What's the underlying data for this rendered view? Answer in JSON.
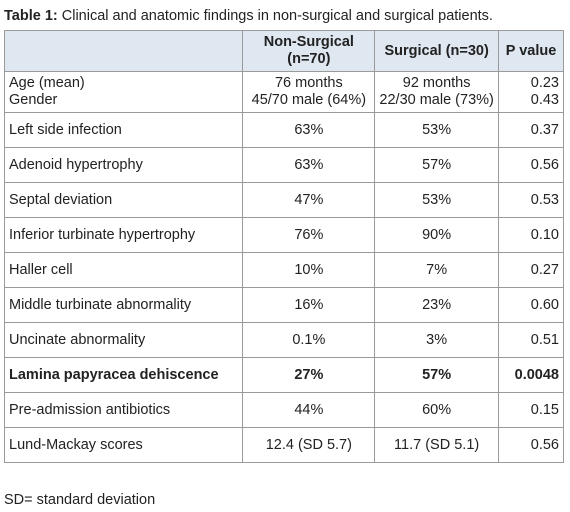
{
  "title": {
    "label": "Table 1:",
    "text": "Clinical and anatomic findings in non-surgical and surgical patients."
  },
  "table": {
    "header": [
      "Non-Surgical (n=70)",
      "Surgical (n=30)",
      "P value"
    ],
    "rows": [
      {
        "cells": [
          [
            "Age (mean)",
            "Gender"
          ],
          [
            "76 months",
            "45/70 male (64%)"
          ],
          [
            "92 months",
            "22/30 male (73%)"
          ],
          [
            "0.23",
            "0.43"
          ]
        ]
      },
      {
        "cells": [
          "Left side infection",
          "63%",
          "53%",
          "0.37"
        ]
      },
      {
        "cells": [
          "Adenoid hypertrophy",
          "63%",
          "57%",
          "0.56"
        ]
      },
      {
        "cells": [
          "Septal deviation",
          "47%",
          "53%",
          "0.53"
        ]
      },
      {
        "cells": [
          "Inferior turbinate hypertrophy",
          "76%",
          "90%",
          "0.10"
        ]
      },
      {
        "cells": [
          "Haller cell",
          "10%",
          "7%",
          "0.27"
        ]
      },
      {
        "cells": [
          "Middle turbinate abnormality",
          "16%",
          "23%",
          "0.60"
        ]
      },
      {
        "cells": [
          "Uncinate abnormality",
          "0.1%",
          "3%",
          "0.51"
        ]
      },
      {
        "cells": [
          "Lamina papyracea dehiscence",
          "27%",
          "57%",
          "0.0048"
        ],
        "bold": true
      },
      {
        "cells": [
          "Pre-admission antibiotics",
          "44%",
          "60%",
          "0.15"
        ]
      },
      {
        "cells": [
          "Lund-Mackay scores",
          "12.4 (SD 5.7)",
          "11.7 (SD 5.1)",
          "0.56"
        ]
      }
    ]
  },
  "footnote": "SD= standard deviation"
}
